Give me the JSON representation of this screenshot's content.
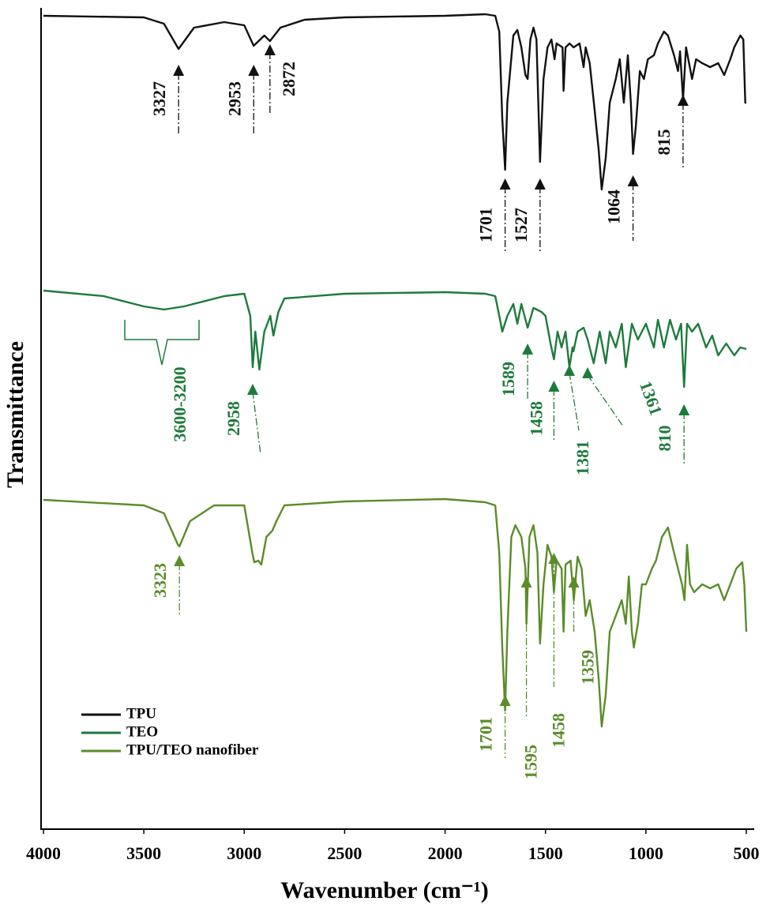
{
  "chart_data": {
    "type": "line",
    "x_label": "Wavenumber (cm⁻¹)",
    "y_label": "Transmittance",
    "xlim": [
      4000,
      500
    ],
    "xticks": [
      4000,
      3500,
      3000,
      2500,
      2000,
      1500,
      1000,
      500
    ],
    "ylim": [
      0,
      104
    ],
    "legend": "lower left",
    "series": [
      {
        "name": "TPU",
        "color": "#111111",
        "x": [
          4000,
          3500,
          3400,
          3327,
          3250,
          3100,
          3000,
          2953,
          2900,
          2872,
          2820,
          2700,
          2500,
          2000,
          1800,
          1750,
          1730,
          1715,
          1701,
          1690,
          1660,
          1640,
          1620,
          1600,
          1589,
          1575,
          1560,
          1545,
          1527,
          1510,
          1490,
          1470,
          1455,
          1445,
          1415,
          1410,
          1400,
          1380,
          1360,
          1330,
          1310,
          1300,
          1280,
          1255,
          1235,
          1220,
          1200,
          1180,
          1150,
          1130,
          1110,
          1090,
          1075,
          1064,
          1050,
          1030,
          1010,
          990,
          960,
          940,
          910,
          890,
          860,
          840,
          830,
          815,
          800,
          770,
          750,
          720,
          680,
          640,
          610,
          580,
          560,
          530,
          515,
          505,
          500
        ],
        "values": [
          103,
          102.8,
          102,
          98.8,
          101.5,
          102.2,
          101.8,
          99.2,
          100.5,
          99.8,
          101.5,
          102.5,
          102.8,
          103,
          103.2,
          103,
          101,
          90,
          83.5,
          92,
          100.5,
          101.2,
          99,
          95.5,
          95,
          100,
          101.5,
          100,
          84.5,
          95,
          99,
          100,
          97.5,
          99.5,
          99,
          93.5,
          99,
          99.5,
          99,
          99.5,
          96.5,
          99,
          97,
          91,
          86,
          81,
          85,
          92,
          95,
          97.5,
          92,
          98,
          92,
          85.5,
          89,
          96,
          95,
          97.5,
          98,
          99.5,
          101,
          100.5,
          98,
          96,
          98.5,
          92.5,
          99,
          95,
          97.5,
          97,
          96.5,
          97,
          95.5,
          97.5,
          99,
          100.5,
          100,
          92,
          92
        ],
        "annotations": [
          3327,
          2953,
          2872,
          1701,
          1527,
          1064,
          815
        ]
      },
      {
        "name": "TEO",
        "color": "#1e7a3c",
        "x": [
          4000,
          3700,
          3500,
          3400,
          3300,
          3100,
          3000,
          2970,
          2958,
          2945,
          2925,
          2900,
          2870,
          2855,
          2830,
          2800,
          2500,
          2000,
          1800,
          1750,
          1730,
          1715,
          1690,
          1660,
          1640,
          1620,
          1589,
          1560,
          1520,
          1500,
          1475,
          1458,
          1440,
          1420,
          1400,
          1381,
          1365,
          1361,
          1340,
          1310,
          1290,
          1260,
          1230,
          1200,
          1180,
          1150,
          1120,
          1100,
          1070,
          1040,
          1000,
          960,
          940,
          910,
          880,
          850,
          825,
          810,
          795,
          770,
          740,
          700,
          670,
          640,
          600,
          560,
          530,
          500
        ],
        "values": [
          68.2,
          67.5,
          66.2,
          65.8,
          66.2,
          67.5,
          67.8,
          65,
          58.5,
          63,
          58.2,
          63,
          65,
          62.5,
          65.5,
          67.2,
          67.8,
          68,
          67.8,
          67.5,
          65,
          63,
          65,
          66.5,
          64,
          66.5,
          63.5,
          66,
          65.5,
          65,
          61.5,
          59.5,
          63,
          61,
          63,
          58.5,
          61,
          60.5,
          63,
          63.5,
          62,
          59,
          63,
          59,
          63,
          61,
          64,
          58.5,
          64,
          62,
          64,
          61,
          64.5,
          61,
          64.5,
          62,
          64,
          56,
          64,
          63,
          64,
          61,
          62.5,
          60,
          61.5,
          60,
          61,
          60.8
        ],
        "annotations": [
          "3600-3200",
          2958,
          1589,
          1458,
          1381,
          1361,
          810
        ]
      },
      {
        "name": "TPU/TEO nanofiber",
        "color": "#5b8c2a",
        "x": [
          4000,
          3500,
          3400,
          3330,
          3323,
          3270,
          3150,
          3000,
          2960,
          2950,
          2930,
          2915,
          2890,
          2860,
          2840,
          2800,
          2500,
          2000,
          1800,
          1750,
          1730,
          1715,
          1701,
          1690,
          1670,
          1650,
          1620,
          1600,
          1595,
          1580,
          1560,
          1540,
          1527,
          1510,
          1490,
          1470,
          1458,
          1445,
          1420,
          1410,
          1400,
          1375,
          1359,
          1340,
          1320,
          1300,
          1280,
          1255,
          1235,
          1220,
          1200,
          1180,
          1150,
          1120,
          1100,
          1085,
          1070,
          1060,
          1040,
          1020,
          1000,
          970,
          950,
          920,
          890,
          860,
          840,
          820,
          808,
          795,
          780,
          760,
          720,
          680,
          640,
          610,
          580,
          550,
          520,
          510,
          500
        ],
        "values": [
          41.7,
          41,
          40,
          36,
          35.8,
          39,
          41,
          41,
          35,
          33.8,
          34,
          33.5,
          37,
          37.8,
          39,
          41,
          41.5,
          41.8,
          41.4,
          41,
          35,
          23,
          15,
          25,
          37,
          38.5,
          37,
          33,
          26,
          37,
          38.5,
          35,
          23.5,
          31,
          36,
          34.5,
          30,
          34,
          33,
          25,
          33.5,
          34,
          29,
          34.5,
          33,
          27,
          29,
          25,
          19,
          13,
          17,
          25,
          27,
          29,
          26,
          32,
          25,
          23,
          26,
          31,
          31,
          33,
          34,
          37,
          38.2,
          35,
          33,
          31,
          29,
          36,
          31,
          30,
          31,
          30.5,
          31,
          29,
          31,
          33,
          33.8,
          31,
          25
        ],
        "annotations": [
          3323,
          1701,
          1595,
          1458,
          1359
        ]
      }
    ]
  }
}
